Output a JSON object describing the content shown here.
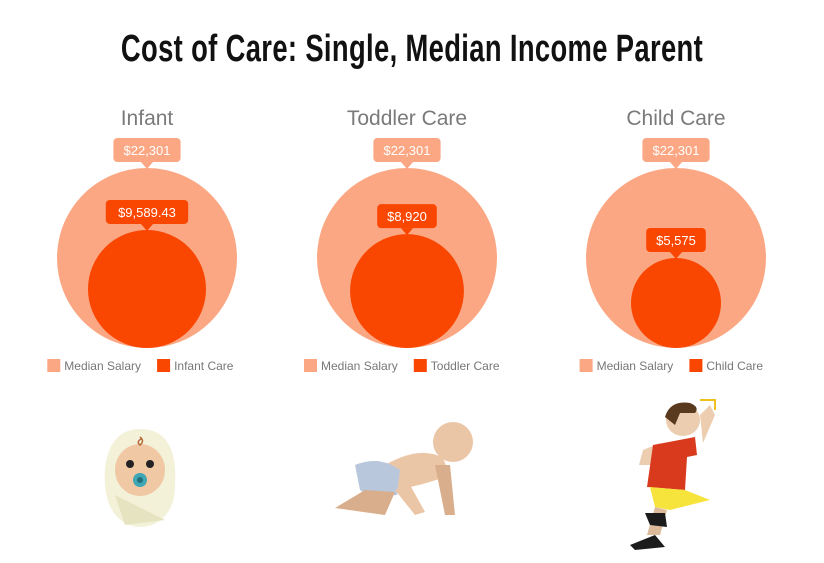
{
  "title": "Cost of Care: Single, Median Income Parent",
  "colors": {
    "salary": "#FBA784",
    "care": "#F94600",
    "panel_title": "#7a7a7a",
    "legend_text": "#777777"
  },
  "chart_data": [
    {
      "type": "bubble",
      "title": "Infant",
      "series": [
        {
          "name": "Median Salary",
          "value": 22301,
          "label": "$22,301"
        },
        {
          "name": "Infant Care",
          "value": 9589.43,
          "label": "$9,589.43"
        }
      ],
      "legend": "bottom"
    },
    {
      "type": "bubble",
      "title": "Toddler Care",
      "series": [
        {
          "name": "Median Salary",
          "value": 22301,
          "label": "$22,301"
        },
        {
          "name": "Toddler Care",
          "value": 8920,
          "label": "$8,920"
        }
      ],
      "legend": "bottom"
    },
    {
      "type": "bubble",
      "title": "Child Care",
      "series": [
        {
          "name": "Median Salary",
          "value": 22301,
          "label": "$22,301"
        },
        {
          "name": "Child Care",
          "value": 5575,
          "label": "$5,575"
        }
      ],
      "legend": "bottom"
    }
  ],
  "illustrations": [
    "baby-icon",
    "crawling-toddler-icon",
    "running-child-icon"
  ]
}
